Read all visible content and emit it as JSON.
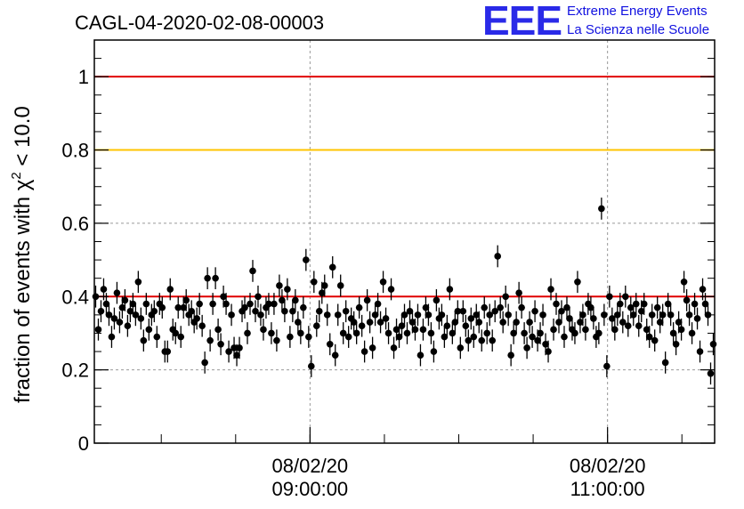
{
  "header": {
    "run_title": "CAGL-04-2020-02-08-00003"
  },
  "logo": {
    "mark": "EEE",
    "line1": "Extreme Energy Events",
    "line2": "La Scienza nelle Scuole"
  },
  "colors": {
    "red_line": "#e00000",
    "yellow_line": "#ffc400",
    "points": "#000000",
    "logo": "#1010e0"
  },
  "chart_data": {
    "type": "scatter",
    "title": "CAGL-04-2020-02-08-00003",
    "xlabel": "",
    "ylabel_parts": [
      "fraction of events with χ",
      "2",
      " < 10.0"
    ],
    "ylim": [
      0,
      1.1
    ],
    "yticks": [
      0,
      0.2,
      0.4,
      0.6,
      0.8,
      1
    ],
    "ytick_labels": [
      "0",
      "0.2",
      "0.4",
      "0.6",
      "0.8",
      "1"
    ],
    "xlim_hours": [
      7.55,
      11.72
    ],
    "xticks": [
      {
        "hour": 9,
        "date": "08/02/20",
        "time": "09:00:00"
      },
      {
        "hour": 11,
        "date": "08/02/20",
        "time": "11:00:00"
      }
    ],
    "grid": true,
    "reference_lines": [
      {
        "y": 1.0,
        "color": "#e00000"
      },
      {
        "y": 0.8,
        "color": "#ffc400"
      },
      {
        "y": 0.4,
        "color": "#e00000"
      }
    ],
    "series": [
      {
        "error": 0.03,
        "values": [
          0.4,
          0.31,
          0.36,
          0.42,
          0.38,
          0.35,
          0.29,
          0.34,
          0.41,
          0.33,
          0.37,
          0.39,
          0.32,
          0.36,
          0.38,
          0.35,
          0.44,
          0.34,
          0.28,
          0.38,
          0.31,
          0.35,
          0.36,
          0.29,
          0.38,
          0.37,
          0.25,
          0.25,
          0.42,
          0.31,
          0.3,
          0.37,
          0.29,
          0.37,
          0.39,
          0.35,
          0.36,
          0.33,
          0.34,
          0.38,
          0.32,
          0.22,
          0.45,
          0.28,
          0.38,
          0.45,
          0.31,
          0.27,
          0.4,
          0.38,
          0.25,
          0.35,
          0.26,
          0.24,
          0.26,
          0.36,
          0.37,
          0.3,
          0.38,
          0.47,
          0.36,
          0.4,
          0.35,
          0.31,
          0.37,
          0.38,
          0.3,
          0.38,
          0.28,
          0.43,
          0.39,
          0.36,
          0.42,
          0.29,
          0.36,
          0.39,
          0.33,
          0.3,
          0.37,
          0.5,
          0.29,
          0.21,
          0.44,
          0.32,
          0.36,
          0.41,
          0.43,
          0.35,
          0.27,
          0.48,
          0.24,
          0.35,
          0.43,
          0.3,
          0.36,
          0.29,
          0.34,
          0.33,
          0.3,
          0.37,
          0.32,
          0.25,
          0.39,
          0.33,
          0.26,
          0.35,
          0.38,
          0.33,
          0.44,
          0.34,
          0.3,
          0.42,
          0.26,
          0.31,
          0.29,
          0.32,
          0.35,
          0.3,
          0.36,
          0.33,
          0.31,
          0.35,
          0.24,
          0.31,
          0.37,
          0.35,
          0.3,
          0.25,
          0.39,
          0.34,
          0.35,
          0.29,
          0.32,
          0.42,
          0.3,
          0.33,
          0.36,
          0.26,
          0.36,
          0.32,
          0.28,
          0.34,
          0.29,
          0.35,
          0.33,
          0.28,
          0.37,
          0.3,
          0.35,
          0.28,
          0.36,
          0.51,
          0.37,
          0.33,
          0.4,
          0.35,
          0.24,
          0.3,
          0.33,
          0.41,
          0.37,
          0.3,
          0.26,
          0.33,
          0.29,
          0.36,
          0.28,
          0.3,
          0.35,
          0.27,
          0.25,
          0.42,
          0.31,
          0.38,
          0.33,
          0.36,
          0.29,
          0.37,
          0.34,
          0.31,
          0.3,
          0.44,
          0.33,
          0.35,
          0.31,
          0.38,
          0.37,
          0.34,
          0.29,
          0.3,
          0.64,
          0.35,
          0.21,
          0.4,
          0.34,
          0.31,
          0.35,
          0.38,
          0.33,
          0.4,
          0.32,
          0.37,
          0.35,
          0.38,
          0.32,
          0.36,
          0.38,
          0.31,
          0.29,
          0.35,
          0.28,
          0.37,
          0.33,
          0.35,
          0.22,
          0.38,
          0.35,
          0.3,
          0.27,
          0.33,
          0.31,
          0.44,
          0.39,
          0.35,
          0.3,
          0.38,
          0.34,
          0.25,
          0.42,
          0.38,
          0.35,
          0.19,
          0.27
        ]
      }
    ]
  }
}
